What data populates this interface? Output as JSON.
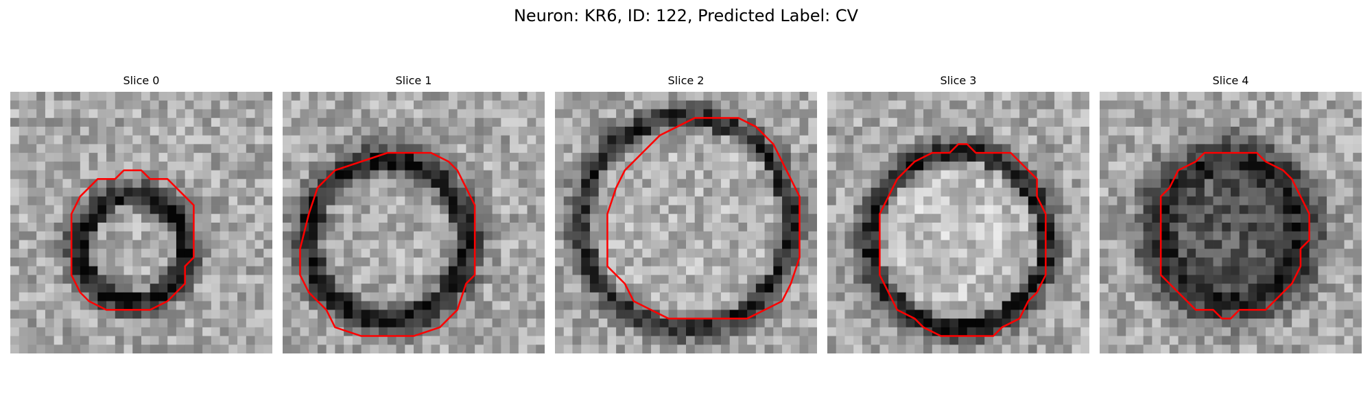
{
  "figure": {
    "title": "Neuron: KR6, ID: 122, Predicted Label: CV"
  },
  "panels": [
    {
      "title": "Slice 0"
    },
    {
      "title": "Slice 1"
    },
    {
      "title": "Slice 2"
    },
    {
      "title": "Slice 3"
    },
    {
      "title": "Slice 4"
    }
  ],
  "colors": {
    "contour": "#ff0000",
    "background": "#ffffff"
  }
}
